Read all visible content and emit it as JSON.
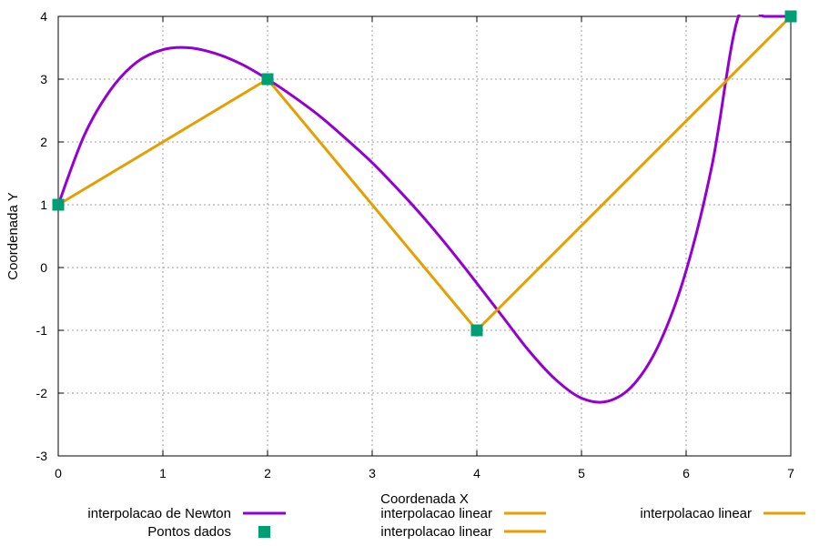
{
  "chart_data": {
    "type": "line",
    "title": "",
    "xlabel": "Coordenada X",
    "ylabel": "Coordenada Y",
    "xlim": [
      0,
      7
    ],
    "ylim": [
      -3,
      4
    ],
    "xticks": [
      0,
      1,
      2,
      3,
      4,
      5,
      6,
      7
    ],
    "yticks": [
      -3,
      -2,
      -1,
      0,
      1,
      2,
      3,
      4
    ],
    "grid": true,
    "legend_position": "bottom",
    "series": [
      {
        "name": "interpolacao de Newton",
        "kind": "curve",
        "color": "#9400d3",
        "x": [
          0,
          0.25,
          0.5,
          0.75,
          1,
          1.25,
          1.5,
          1.75,
          2,
          2.25,
          2.5,
          2.75,
          3,
          3.25,
          3.5,
          3.75,
          4,
          4.25,
          4.5,
          4.75,
          5,
          5.25,
          5.5,
          5.75,
          6,
          6.25,
          6.5,
          6.75,
          7
        ],
        "y": [
          1,
          2.11,
          2.83,
          3.27,
          3.47,
          3.5,
          3.41,
          3.24,
          3,
          2.72,
          2.41,
          2.05,
          1.67,
          1.24,
          0.78,
          0.28,
          -0.25,
          -0.79,
          -1.33,
          -1.78,
          -2.08,
          -2.13,
          -1.86,
          -1.19,
          -0.05,
          1.65,
          4.0,
          4.0,
          4
        ]
      },
      {
        "name": "Pontos dados",
        "kind": "points",
        "color": "#009e73",
        "x": [
          0,
          2,
          4,
          7
        ],
        "y": [
          1,
          3,
          -1,
          4
        ]
      },
      {
        "name": "interpolacao linear",
        "kind": "line",
        "color": "#e69f00",
        "x": [
          0,
          2
        ],
        "y": [
          1,
          3
        ]
      },
      {
        "name": "interpolacao linear",
        "kind": "line",
        "color": "#e69f00",
        "x": [
          2,
          4
        ],
        "y": [
          3,
          -1
        ]
      },
      {
        "name": "interpolacao linear",
        "kind": "line",
        "color": "#e69f00",
        "x": [
          4,
          7
        ],
        "y": [
          -1,
          4
        ]
      }
    ]
  }
}
